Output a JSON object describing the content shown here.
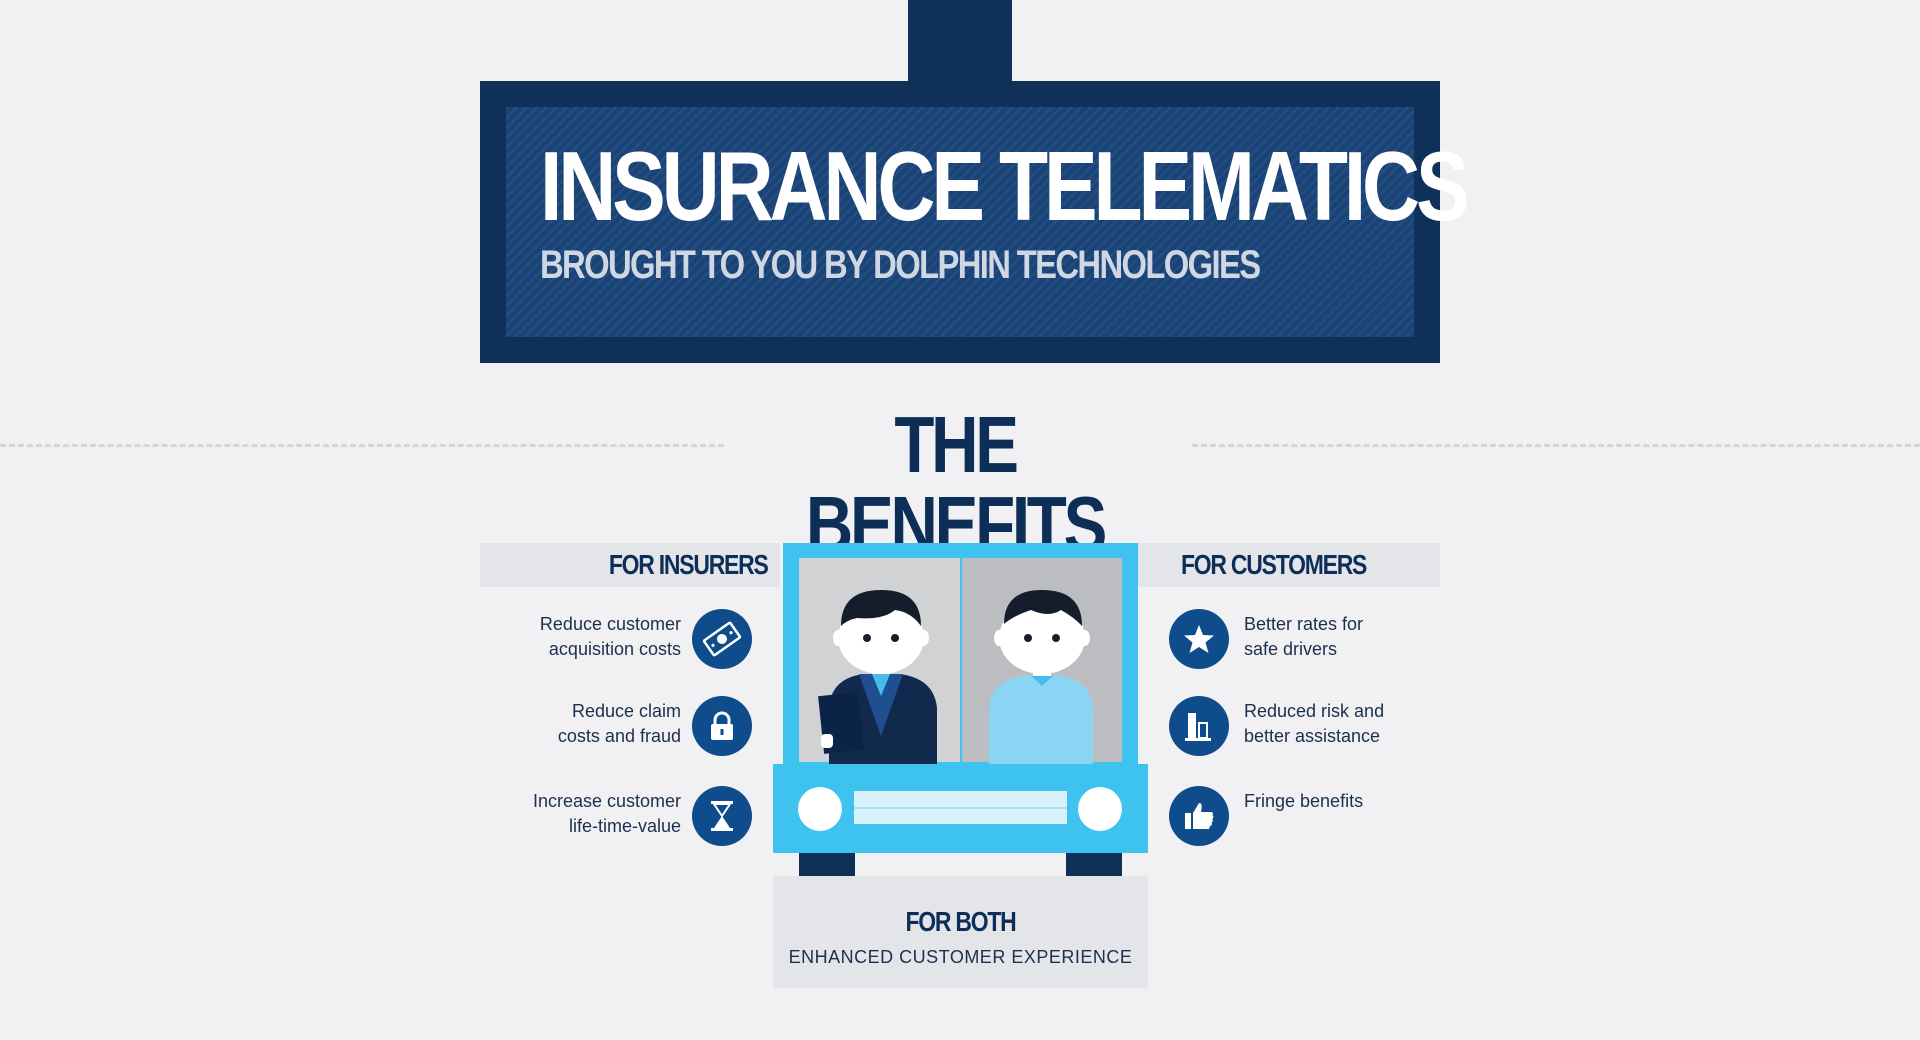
{
  "header": {
    "title": "INSURANCE TELEMATICS",
    "subtitle": "BROUGHT TO YOU BY DOLPHIN TECHNOLOGIES"
  },
  "section": {
    "title": "THE BENEFITS"
  },
  "insurers": {
    "heading": "FOR INSURERS",
    "items": [
      {
        "text": "Reduce customer\nacquisition costs",
        "icon": "money-icon"
      },
      {
        "text": "Reduce claim\ncosts and fraud",
        "icon": "lock-icon"
      },
      {
        "text": "Increase customer\nlife-time-value",
        "icon": "hourglass-icon"
      }
    ]
  },
  "customers": {
    "heading": "FOR CUSTOMERS",
    "items": [
      {
        "text": "Better rates for\nsafe drivers",
        "icon": "star-icon"
      },
      {
        "text": "Reduced risk and\nbetter assistance",
        "icon": "bar-chart-icon"
      },
      {
        "text": "Fringe benefits",
        "icon": "thumbs-up-icon"
      }
    ]
  },
  "both": {
    "heading": "FOR BOTH",
    "text": "ENHANCED CUSTOMER EXPERIENCE"
  },
  "colors": {
    "navy": "#0e3057",
    "board": "#1a4478",
    "icon_circle": "#0f4c8c",
    "truck": "#3ec3ee",
    "background": "#f1f1f3"
  }
}
